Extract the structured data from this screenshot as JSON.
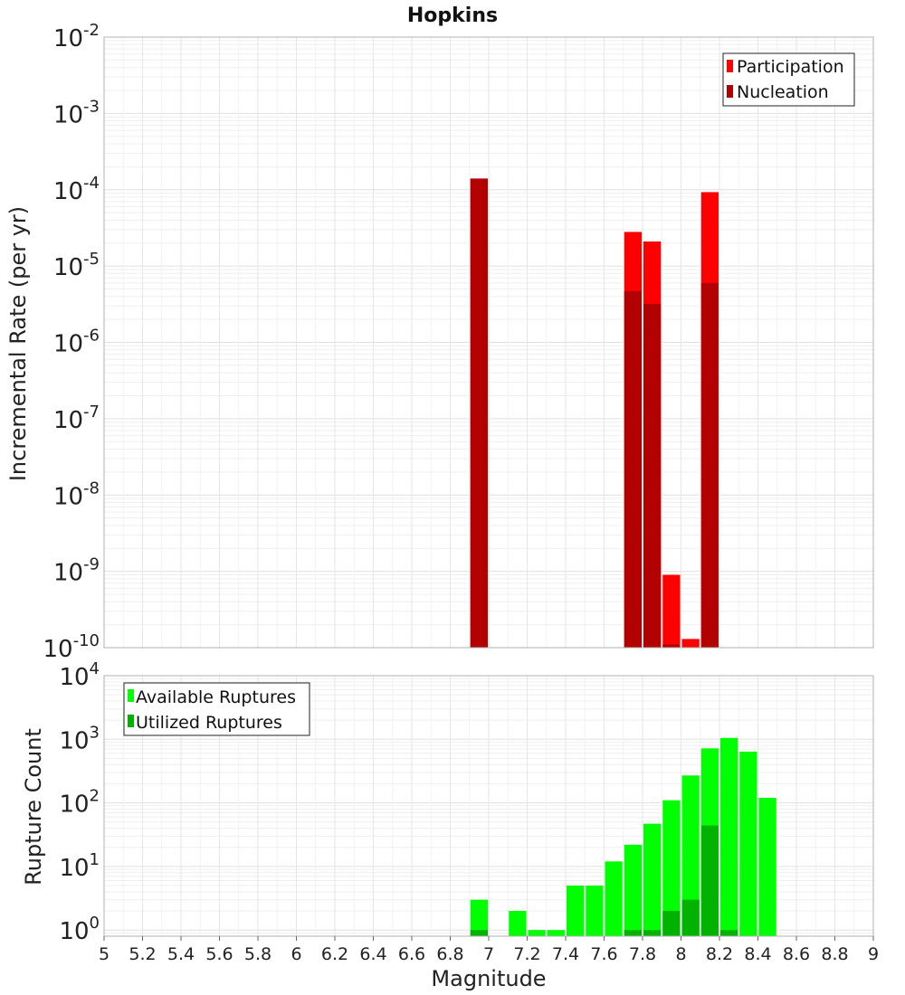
{
  "chart_data": [
    {
      "type": "bar",
      "title": "Hopkins",
      "xlabel": "",
      "ylabel": "Incremental Rate (per yr)",
      "yscale": "log",
      "ylim": [
        1e-10,
        0.01
      ],
      "xlim": [
        5,
        9
      ],
      "y_tick_exponents": [
        "-2",
        "-3",
        "-4",
        "-5",
        "-6",
        "-7",
        "-8",
        "-9",
        "-10"
      ],
      "y_tick_base": "10",
      "legend_position": "top-right",
      "grid": true,
      "series": [
        {
          "name": "Participation",
          "color": "#ff0000",
          "x": [
            6.95,
            7.75,
            7.85,
            7.95,
            8.05,
            8.15
          ],
          "values": [
            0.00014,
            2.8e-05,
            2.1e-05,
            9e-10,
            1.3e-10,
            9.3e-05
          ]
        },
        {
          "name": "Nucleation",
          "color": "#b30000",
          "x": [
            6.95,
            7.75,
            7.85,
            7.95,
            8.15
          ],
          "values": [
            0.00014,
            4.7e-06,
            3.2e-06,
            1.1e-10,
            6e-06
          ]
        }
      ]
    },
    {
      "type": "bar",
      "title": "",
      "xlabel": "Magnitude",
      "ylabel": "Rupture Count",
      "yscale": "log",
      "ylim": [
        0.8,
        10000
      ],
      "xlim": [
        5,
        9
      ],
      "y_tick_exponents": [
        "4",
        "3",
        "2",
        "1",
        "0"
      ],
      "y_tick_base": "10",
      "x_tick_labels": [
        "5",
        "5.2",
        "5.4",
        "5.6",
        "5.8",
        "6",
        "6.2",
        "6.4",
        "6.6",
        "6.8",
        "7",
        "7.2",
        "7.4",
        "7.6",
        "7.8",
        "8",
        "8.2",
        "8.4",
        "8.6",
        "8.8",
        "9"
      ],
      "legend_position": "top-left",
      "grid": true,
      "series": [
        {
          "name": "Available Ruptures",
          "color": "#00ff00",
          "x": [
            6.95,
            7.15,
            7.25,
            7.35,
            7.45,
            7.55,
            7.65,
            7.75,
            7.85,
            7.95,
            8.05,
            8.15,
            8.25,
            8.35,
            8.45
          ],
          "values": [
            3,
            2,
            1,
            1,
            5,
            5,
            12,
            22,
            47,
            110,
            270,
            720,
            1050,
            640,
            120
          ]
        },
        {
          "name": "Utilized Ruptures",
          "color": "#00b300",
          "x": [
            6.95,
            7.75,
            7.85,
            7.95,
            8.05,
            8.15,
            8.25
          ],
          "values": [
            1,
            1,
            1,
            2,
            3,
            44,
            1
          ]
        }
      ]
    }
  ]
}
